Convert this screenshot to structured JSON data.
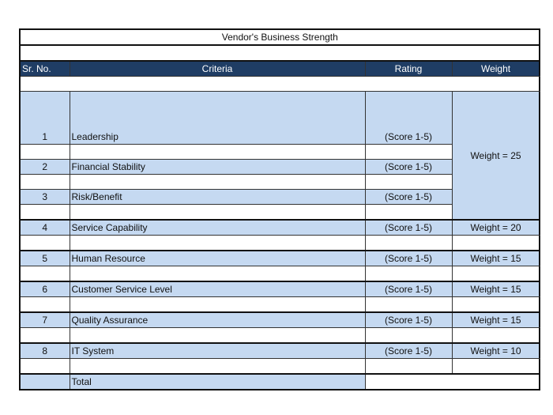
{
  "title": "Vendor's Business Strength",
  "headers": [
    "Sr. No.",
    "Criteria",
    "Rating",
    "Weight"
  ],
  "rows": [
    {
      "no": "1",
      "criteria": "Leadership",
      "rating": "(Score 1-5)",
      "weight": "Weight = 25"
    },
    {
      "no": "2",
      "criteria": "Financial Stability",
      "rating": "(Score 1-5)",
      "weight": ""
    },
    {
      "no": "3",
      "criteria": "Risk/Benefit",
      "rating": "(Score 1-5)",
      "weight": ""
    },
    {
      "no": "4",
      "criteria": "Service Capability",
      "rating": "(Score 1-5)",
      "weight": "Weight = 20"
    },
    {
      "no": "5",
      "criteria": "Human Resource",
      "rating": "(Score 1-5)",
      "weight": "Weight = 15"
    },
    {
      "no": "6",
      "criteria": "Customer Service Level",
      "rating": "(Score 1-5)",
      "weight": "Weight = 15"
    },
    {
      "no": "7",
      "criteria": "Quality Assurance",
      "rating": "(Score 1-5)",
      "weight": "Weight = 15"
    },
    {
      "no": "8",
      "criteria": "IT System",
      "rating": "(Score 1-5)",
      "weight": "Weight = 10"
    }
  ],
  "total_label": "Total",
  "colors": {
    "header": "#1f3d64",
    "row": "#c5d9f1"
  }
}
